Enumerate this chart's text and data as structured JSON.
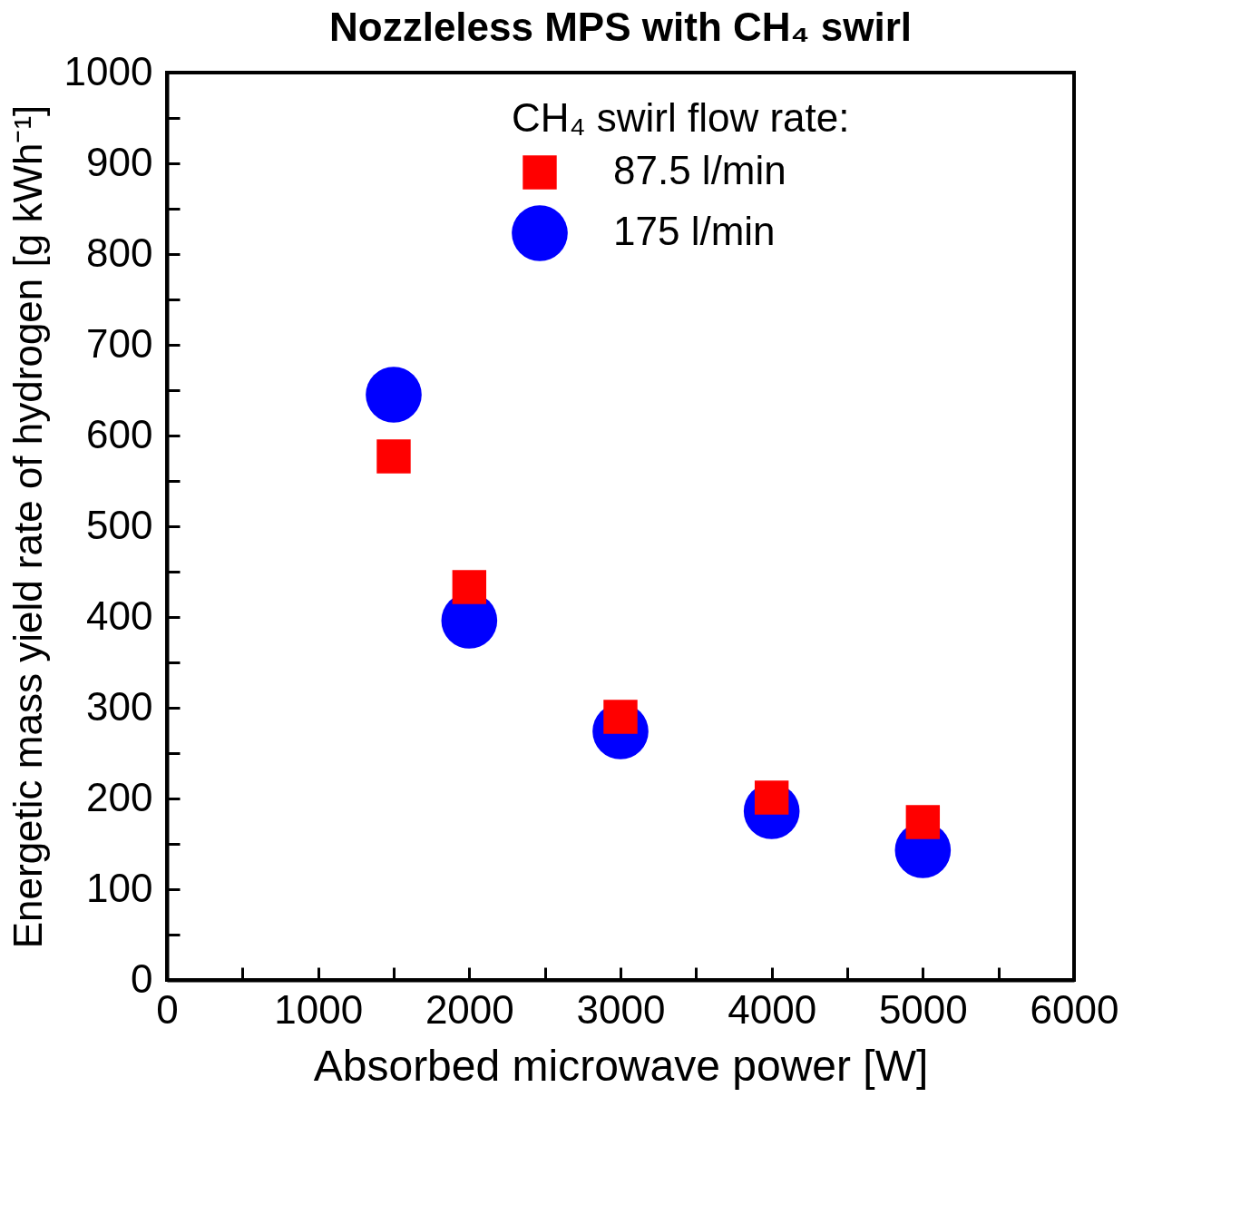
{
  "chart_data": {
    "type": "scatter",
    "title": "Nozzleless MPS with CH₄ swirl",
    "xlabel": "Absorbed microwave power [W]",
    "ylabel": "Energetic mass yield rate of hydrogen [g kWh⁻¹]",
    "legend_title": "CH₄ swirl flow rate:",
    "legend": "top right",
    "x": [
      1500,
      2000,
      3000,
      4000,
      5000
    ],
    "series": [
      {
        "name": "87.5 l/min",
        "color": "#ff0000",
        "marker": "square",
        "values": [
          577,
          433,
          290,
          201,
          174
        ]
      },
      {
        "name": "175 l/min",
        "color": "#0000ff",
        "marker": "circle",
        "values": [
          645,
          396,
          274,
          186,
          143
        ]
      }
    ],
    "xlim": [
      0,
      6000
    ],
    "xticks": [
      0,
      {
        "value": 500,
        "label": null
      },
      1000,
      {
        "value": 1500,
        "label": null
      },
      2000,
      {
        "value": 2500,
        "label": null
      },
      3000,
      {
        "value": 3500,
        "label": null
      },
      4000,
      {
        "value": 4500,
        "label": null
      },
      5000,
      {
        "value": 5500,
        "label": null
      },
      6000
    ],
    "ylim": [
      0,
      1000
    ],
    "yticks": [
      0,
      {
        "value": 50,
        "label": null
      },
      100,
      {
        "value": 150,
        "label": null
      },
      200,
      {
        "value": 250,
        "label": null
      },
      300,
      {
        "value": 350,
        "label": null
      },
      400,
      {
        "value": 450,
        "label": null
      },
      500,
      {
        "value": 550,
        "label": null
      },
      600,
      {
        "value": 650,
        "label": null
      },
      700,
      {
        "value": 750,
        "label": null
      },
      800,
      {
        "value": 850,
        "label": null
      },
      900,
      {
        "value": 950,
        "label": null
      },
      1000
    ],
    "grid": false
  }
}
